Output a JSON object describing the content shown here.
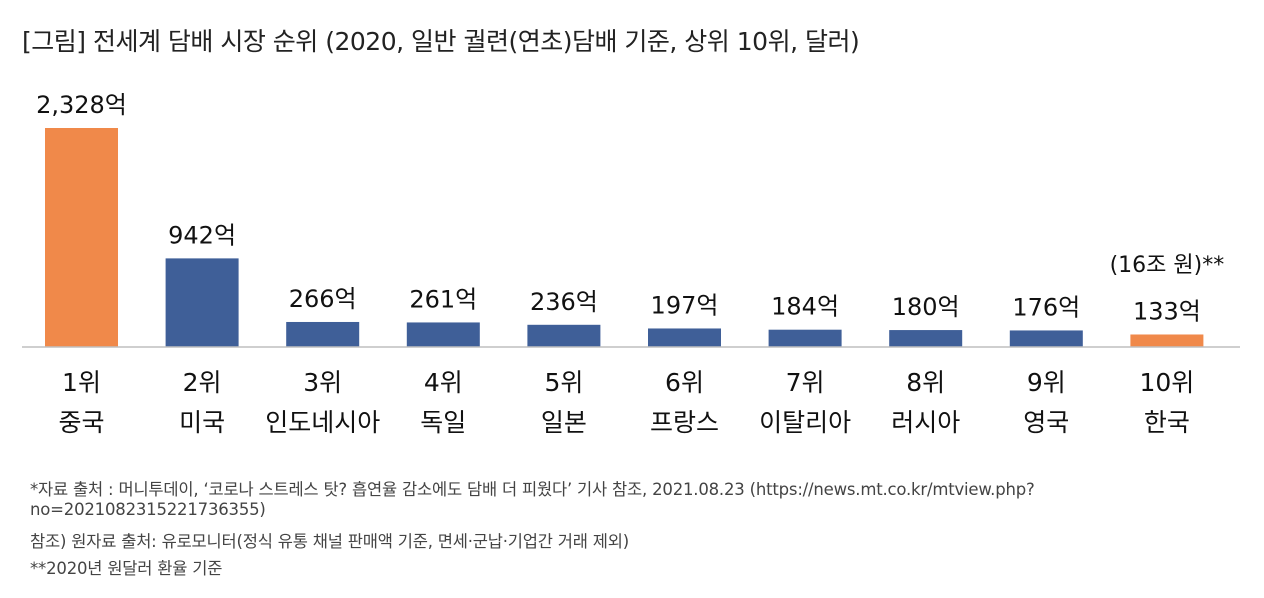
{
  "title": "[그림] 전세계 담배 시장 순위 (2020, 일반 궐련(연초)담배 기준, 상위 10위, 달러)",
  "chart_data": {
    "type": "bar",
    "categories": [
      "1위 중국",
      "2위 미국",
      "3위 인도네시아",
      "4위 독일",
      "5위 일본",
      "6위 프랑스",
      "7위 이탈리아",
      "8위 러시아",
      "9위 영국",
      "10위 한국"
    ],
    "rank_labels": [
      "1위",
      "2위",
      "3위",
      "4위",
      "5위",
      "6위",
      "7위",
      "8위",
      "9위",
      "10위"
    ],
    "country_labels": [
      "중국",
      "미국",
      "인도네시아",
      "독일",
      "일본",
      "프랑스",
      "이탈리아",
      "러시아",
      "영국",
      "한국"
    ],
    "values": [
      2328,
      942,
      266,
      261,
      236,
      197,
      184,
      180,
      176,
      133
    ],
    "value_labels": [
      "2,328억",
      "942억",
      "266억",
      "261억",
      "236억",
      "197억",
      "184억",
      "180억",
      "176억",
      "133억"
    ],
    "highlight": [
      true,
      false,
      false,
      false,
      false,
      false,
      false,
      false,
      false,
      true
    ],
    "annotation": "(16조 원)**",
    "annotation_index": 9,
    "unit": "억",
    "colors": {
      "highlight": "#F0894A",
      "normal": "#3F5F98",
      "axis": "#BFBFBF"
    },
    "ylim": [
      0,
      2328
    ],
    "grid": false
  },
  "footnotes": [
    "*자료 출처 : 머니투데이, ‘코로나 스트레스 탓? 흡연율 감소에도 담배 더 피웠다’ 기사 참조, 2021.08.23 (https://news.mt.co.kr/mtview.php?",
    "no=2021082315221736355)",
    "참조) 원자료 출처: 유로모니터(정식 유통 채널 판매액 기준, 면세·군납·기업간 거래 제외)",
    "**2020년 원달러 환율 기준"
  ]
}
